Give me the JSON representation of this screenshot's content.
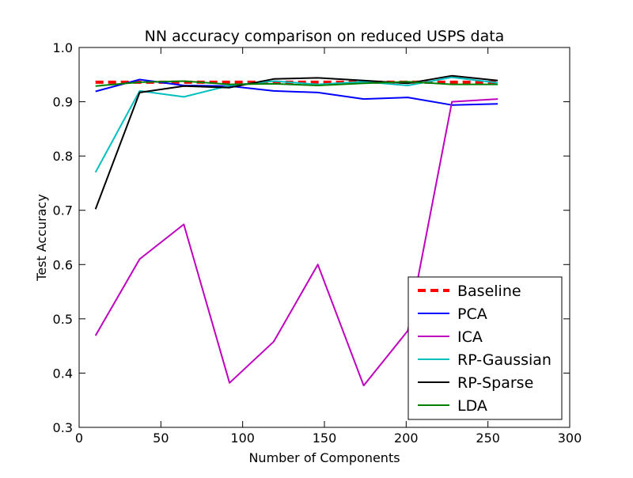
{
  "chart_data": {
    "type": "line",
    "title": "NN accuracy comparison on reduced USPS data",
    "xlabel": "Number of Components",
    "ylabel": "Test Accuracy",
    "xlim": [
      0,
      300
    ],
    "ylim": [
      0.3,
      1.0
    ],
    "xticks": [
      0,
      50,
      100,
      150,
      200,
      250,
      300
    ],
    "yticks": [
      0.3,
      0.4,
      0.5,
      0.6,
      0.7,
      0.8,
      0.9,
      1.0
    ],
    "xtick_labels": [
      "0",
      "50",
      "100",
      "150",
      "200",
      "250",
      "300"
    ],
    "ytick_labels": [
      "0.3",
      "0.4",
      "0.5",
      "0.6",
      "0.7",
      "0.8",
      "0.9",
      "1.0"
    ],
    "grid": false,
    "legend_position": "lower-right",
    "x": [
      10,
      37,
      64,
      92,
      119,
      146,
      174,
      201,
      228,
      256
    ],
    "series": [
      {
        "name": "Baseline",
        "color": "#ff0000",
        "style": "dashed",
        "values": [
          0.936,
          0.936,
          0.936,
          0.936,
          0.936,
          0.936,
          0.936,
          0.936,
          0.936,
          0.936
        ]
      },
      {
        "name": "PCA",
        "color": "#0000ff",
        "style": "solid",
        "values": [
          0.919,
          0.941,
          0.93,
          0.929,
          0.92,
          0.917,
          0.905,
          0.908,
          0.894,
          0.896
        ]
      },
      {
        "name": "ICA",
        "color": "#bf00bf",
        "style": "solid",
        "values": [
          0.469,
          0.61,
          0.674,
          0.382,
          0.458,
          0.6,
          0.377,
          0.478,
          0.9,
          0.905
        ]
      },
      {
        "name": "RP-Gaussian",
        "color": "#00bfbf",
        "style": "solid",
        "values": [
          0.77,
          0.92,
          0.909,
          0.93,
          0.938,
          0.932,
          0.937,
          0.93,
          0.945,
          0.935
        ]
      },
      {
        "name": "RP-Sparse",
        "color": "#000000",
        "style": "solid",
        "values": [
          0.702,
          0.917,
          0.929,
          0.926,
          0.942,
          0.944,
          0.939,
          0.934,
          0.948,
          0.939
        ]
      },
      {
        "name": "LDA",
        "color": "#008000",
        "style": "solid",
        "values": [
          0.929,
          0.936,
          0.938,
          0.932,
          0.933,
          0.93,
          0.934,
          0.937,
          0.932,
          0.932
        ]
      }
    ]
  }
}
